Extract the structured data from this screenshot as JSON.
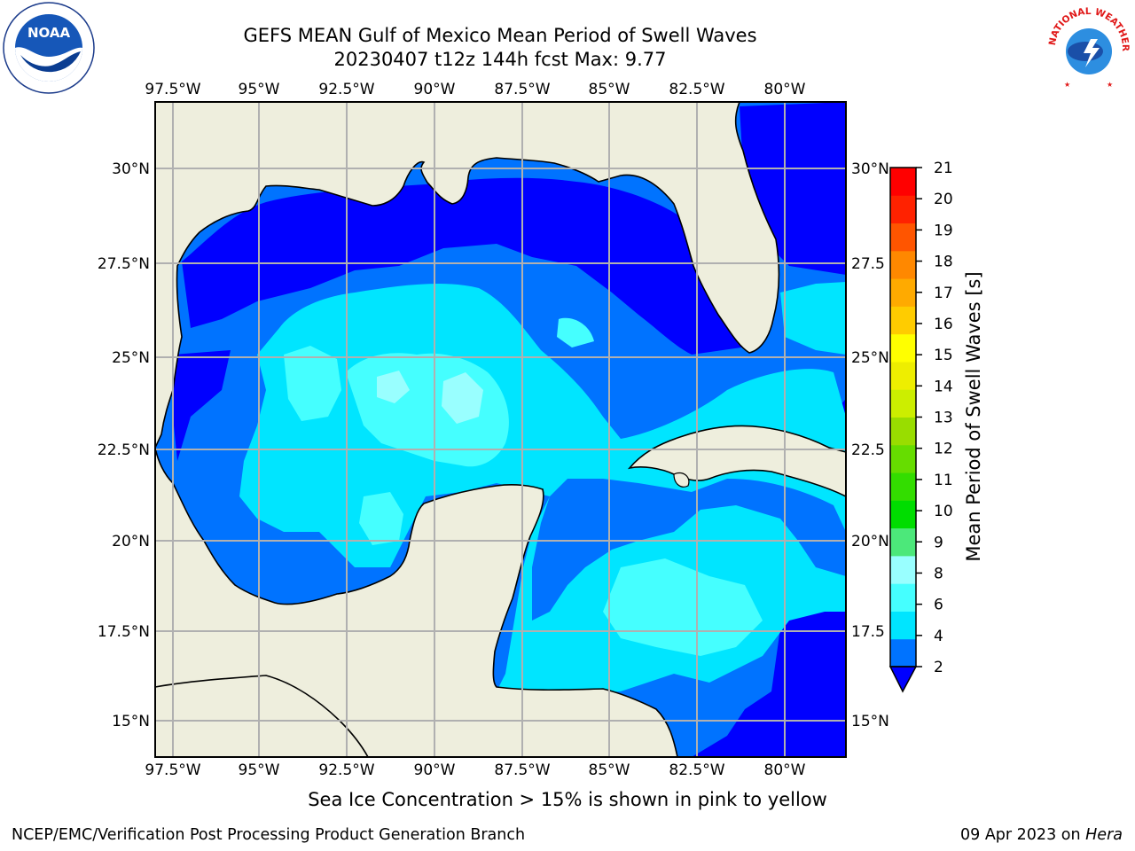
{
  "title": {
    "line1": "GEFS MEAN Gulf of Mexico Mean Period of Swell Waves",
    "line2": "20230407 t12z 144h fcst   Max: 9.77"
  },
  "logos": {
    "left": "noaa-logo",
    "right": "nws-logo",
    "left_text": "NOAA",
    "right_text": "NATIONAL WEATHER SERVICE"
  },
  "map": {
    "lon_ticks": [
      "97.5°W",
      "95°W",
      "92.5°W",
      "90°W",
      "87.5°W",
      "85°W",
      "82.5°W",
      "80°W"
    ],
    "lat_ticks_left": [
      "30°N",
      "27.5°N",
      "25°N",
      "22.5°N",
      "20°N",
      "17.5°N",
      "15°N"
    ],
    "lat_ticks_right": [
      "30°N",
      "27.5",
      "25°N",
      "22.5",
      "20°N",
      "17.5",
      "15°N"
    ],
    "lon_range": [
      -98,
      -78.3
    ],
    "lat_range": [
      14,
      31.5
    ],
    "colors": {
      "land": "#eeeedd",
      "grid": "#b0b0b0",
      "level_2_4": "#0073ff",
      "below_2": "#0000ff",
      "level_4_6": "#00e5ff",
      "level_6_8": "#45ffff",
      "level_8_9": "#99ffff",
      "level_9_10": "#4ce87a"
    }
  },
  "colorbar": {
    "label": "Mean Period of Swell Waves [s]",
    "ticks": [
      "2",
      "4",
      "6",
      "8",
      "9",
      "10",
      "11",
      "12",
      "13",
      "14",
      "15",
      "16",
      "17",
      "18",
      "19",
      "20",
      "21"
    ],
    "colors": [
      "#0073ff",
      "#00e5ff",
      "#45ffff",
      "#99ffff",
      "#4ce87a",
      "#00dd00",
      "#33dd00",
      "#66dd00",
      "#99dd00",
      "#ccee00",
      "#eeee00",
      "#ffff00",
      "#ffcc00",
      "#ffaa00",
      "#ff8800",
      "#ff5500",
      "#ff2200",
      "#ff0000"
    ],
    "under_color": "#0000ff"
  },
  "footnote": "Sea Ice Concentration > 15% is shown in pink to yellow",
  "footer": {
    "left": "NCEP/EMC/Verification Post Processing Product Generation Branch",
    "date": "09 Apr 2023 on ",
    "host": "Hera"
  }
}
